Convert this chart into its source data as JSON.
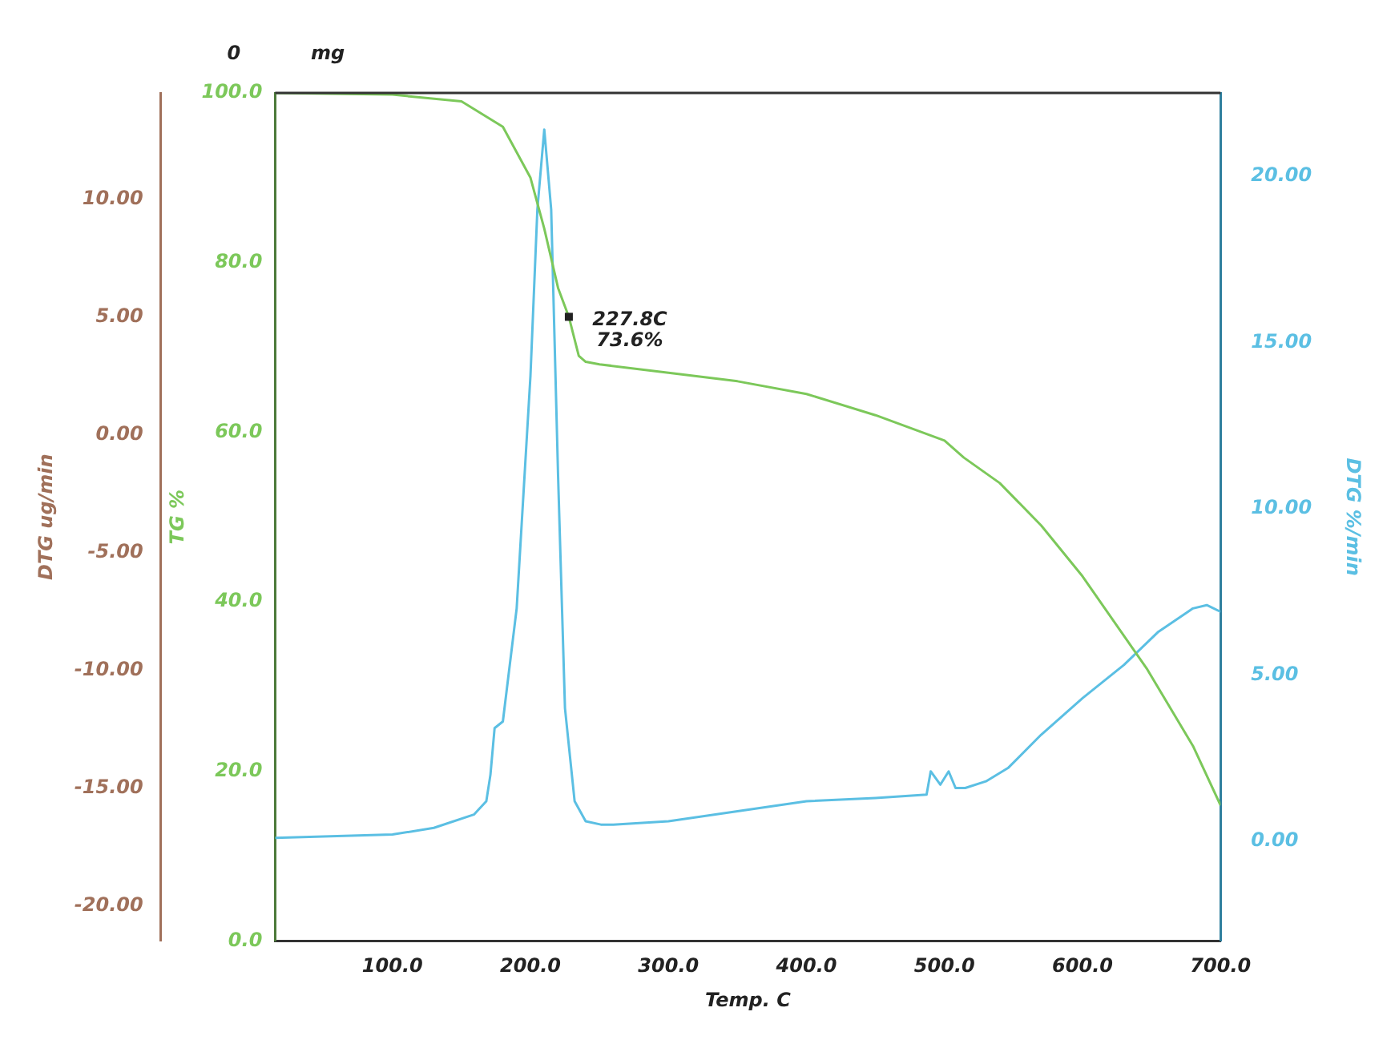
{
  "chart_data": {
    "type": "line",
    "xlabel": "Temp. C",
    "ylabel": "TG %",
    "y2label": "DTG %/min",
    "y3label": "DTG ug/min",
    "xlim": [
      15,
      700
    ],
    "xticks": [
      {
        "value": 100,
        "label": "100.0"
      },
      {
        "value": 200,
        "label": "200.0"
      },
      {
        "value": 300,
        "label": "300.0"
      },
      {
        "value": 400,
        "label": "400.0"
      },
      {
        "value": 500,
        "label": "500.0"
      },
      {
        "value": 600,
        "label": "600.0"
      },
      {
        "value": 700,
        "label": "700.0"
      }
    ],
    "ylim": [
      0,
      100
    ],
    "yticks": [
      {
        "value": 0,
        "label": "0.0"
      },
      {
        "value": 20,
        "label": "20.0"
      },
      {
        "value": 40,
        "label": "40.0"
      },
      {
        "value": 60,
        "label": "60.0"
      },
      {
        "value": 80,
        "label": "80.0"
      },
      {
        "value": 100,
        "label": "100.0"
      }
    ],
    "y2lim": [
      -3,
      22.5
    ],
    "y2ticks": [
      {
        "value": 0,
        "label": "0.00"
      },
      {
        "value": 5,
        "label": "5.00"
      },
      {
        "value": 10,
        "label": "10.00"
      },
      {
        "value": 15,
        "label": "15.00"
      },
      {
        "value": 20,
        "label": "20.00"
      }
    ],
    "y3lim": [
      -21.5,
      14.5
    ],
    "y3ticks": [
      {
        "value": -20,
        "label": "-20.00"
      },
      {
        "value": -15,
        "label": "-15.00"
      },
      {
        "value": -10,
        "label": "-10.00"
      },
      {
        "value": -5,
        "label": "-5.00"
      },
      {
        "value": 0,
        "label": "0.00"
      },
      {
        "value": 5,
        "label": "5.00"
      },
      {
        "value": 10,
        "label": "10.00"
      }
    ],
    "grid": false,
    "legend": false,
    "marker": "none",
    "line_style": "solid",
    "annotations": [
      "0 mg",
      {
        "text": "227.8C\n73.6%",
        "x": 227.8,
        "y": 73.6
      }
    ],
    "series": [
      {
        "color": "#7cc85a",
        "x": [
          15,
          100,
          150,
          180,
          200,
          210,
          220,
          227.8,
          235,
          240,
          250,
          300,
          350,
          400,
          450,
          500,
          514,
          540,
          570,
          600,
          647,
          680,
          700
        ],
        "values": [
          100,
          99.8,
          99,
          96,
          90,
          84,
          77,
          73.6,
          69,
          68.3,
          68,
          67,
          66,
          64.5,
          62,
          59,
          57,
          54,
          49,
          43,
          32,
          23,
          16
        ]
      },
      {
        "color": "#5bbfe3",
        "axis": "y2",
        "x": [
          15,
          100,
          130,
          159,
          168,
          171,
          174,
          180,
          190,
          200,
          205,
          210,
          215,
          220,
          225,
          232,
          240,
          251,
          260,
          300,
          350,
          400,
          450,
          487,
          490,
          497,
          503,
          508,
          515,
          530,
          546,
          570,
          600,
          630,
          655,
          680,
          690,
          700
        ],
        "values": [
          0.1,
          0.2,
          0.4,
          0.8,
          1.2,
          2.0,
          3.4,
          3.6,
          7,
          14,
          19,
          21.4,
          19,
          11,
          4,
          1.2,
          0.6,
          0.5,
          0.5,
          0.6,
          0.9,
          1.2,
          1.3,
          1.4,
          2.1,
          1.7,
          2.1,
          1.6,
          1.6,
          1.8,
          2.2,
          3.2,
          4.3,
          5.3,
          6.3,
          7.0,
          7.1,
          6.9
        ]
      }
    ]
  }
}
